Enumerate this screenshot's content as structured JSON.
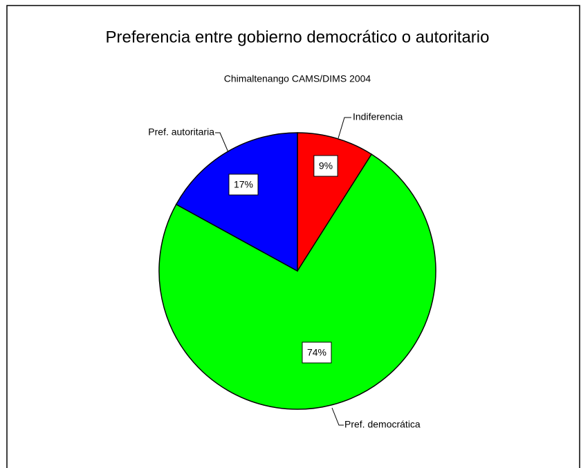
{
  "chart_data": {
    "type": "pie",
    "title": "Preferencia entre gobierno democrático o autoritario",
    "subtitle": "Chimaltenango CAMS/DIMS 2004",
    "categories": [
      "Indiferencia",
      "Pref. democrática",
      "Pref. autoritaria"
    ],
    "values": [
      9,
      74,
      17
    ],
    "value_labels": [
      "9%",
      "74%",
      "17%"
    ],
    "colors": [
      "#ff0000",
      "#00ff00",
      "#0000ff"
    ]
  }
}
